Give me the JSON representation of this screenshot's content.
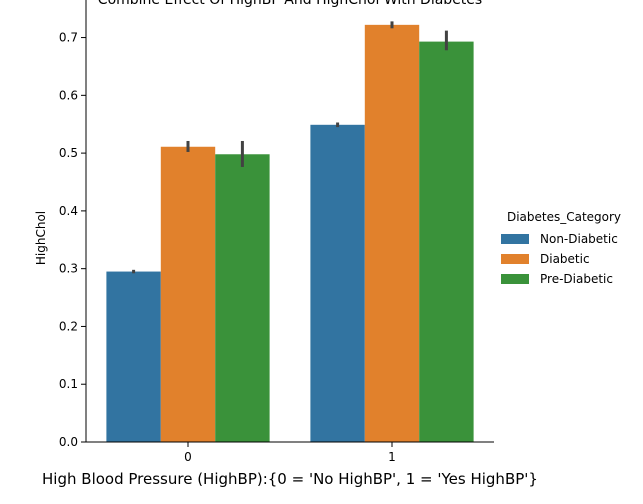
{
  "chart_data": {
    "type": "bar",
    "title": "Combine Effect Of HighBP And HighChol With Diabetes",
    "xlabel": "High Blood Pressure (HighBP):{0 = 'No HighBP', 1 = 'Yes HighBP'}",
    "ylabel": "HighChol",
    "categories": [
      "0",
      "1"
    ],
    "ylim": [
      0,
      0.765
    ],
    "yticks": [
      "0.0",
      "0.1",
      "0.2",
      "0.3",
      "0.4",
      "0.5",
      "0.6",
      "0.7"
    ],
    "legend": {
      "title": "Diabetes_Category",
      "placement": "right"
    },
    "grid": false,
    "series": [
      {
        "name": "Non-Diabetic",
        "color": "#3274a1",
        "values": [
          0.295,
          0.549
        ],
        "ci": [
          [
            0.292,
            0.298
          ],
          [
            0.545,
            0.553
          ]
        ]
      },
      {
        "name": "Diabetic",
        "color": "#e1812c",
        "values": [
          0.511,
          0.722
        ],
        "ci": [
          [
            0.502,
            0.521
          ],
          [
            0.716,
            0.728
          ]
        ]
      },
      {
        "name": "Pre-Diabetic",
        "color": "#3a923a",
        "values": [
          0.498,
          0.693
        ],
        "ci": [
          [
            0.476,
            0.521
          ],
          [
            0.678,
            0.712
          ]
        ]
      }
    ]
  }
}
